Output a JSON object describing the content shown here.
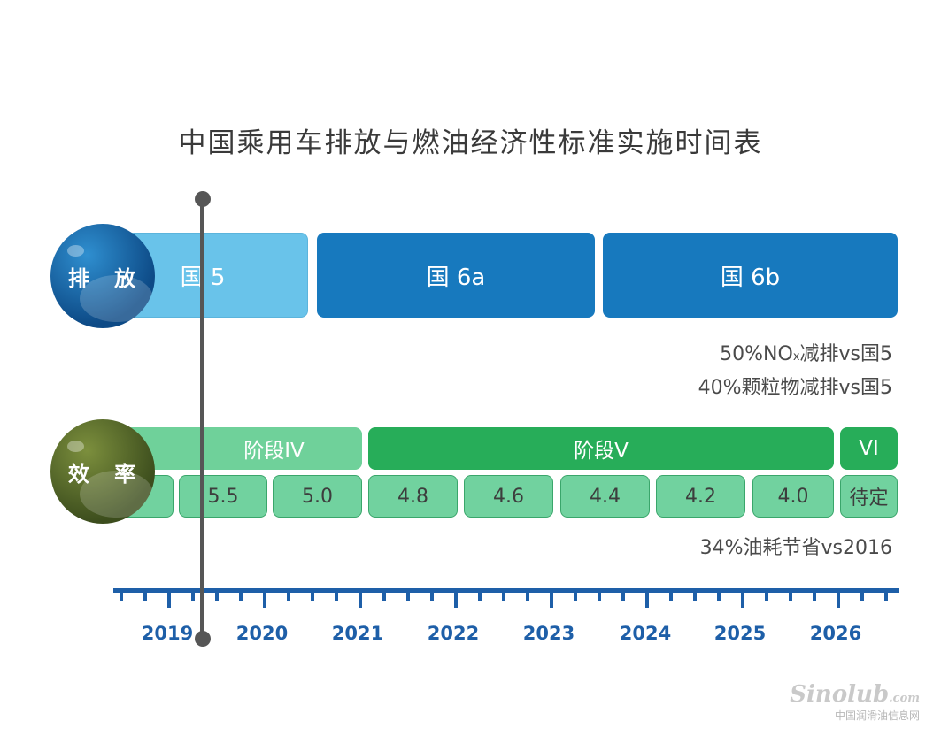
{
  "title": "中国乘用车排放与燃油经济性标准实施时间表",
  "chart_data": {
    "type": "timeline",
    "x_axis": {
      "labels": [
        "2019",
        "2020",
        "2021",
        "2022",
        "2023",
        "2024",
        "2025",
        "2026"
      ]
    },
    "rows": [
      {
        "label": "排 放",
        "bars": [
          {
            "label": "国 5"
          },
          {
            "label": "国 6a"
          },
          {
            "label": "国 6b"
          }
        ],
        "notes": [
          "50%NO",
          "x",
          "减排vs国5",
          "40%颗粒物减排vs国5"
        ]
      },
      {
        "label": "效 率",
        "stages": [
          {
            "label": "阶段IV"
          },
          {
            "label": "阶段V"
          },
          {
            "label": "VI"
          }
        ],
        "values": [
          "5.5",
          "5.0",
          "4.8",
          "4.6",
          "4.4",
          "4.2",
          "4.0",
          "待定"
        ],
        "note": "34%油耗节省vs2016"
      }
    ]
  },
  "watermark": {
    "mark": "Sinolub",
    "domain": ".com",
    "sub": "中国润滑油信息网"
  },
  "colors": {
    "emission_light": "#69c3ea",
    "emission_dark": "#1779be",
    "stage_light": "#6fd19a",
    "stage_dark": "#27ad59",
    "axis": "#1e5fa8"
  }
}
